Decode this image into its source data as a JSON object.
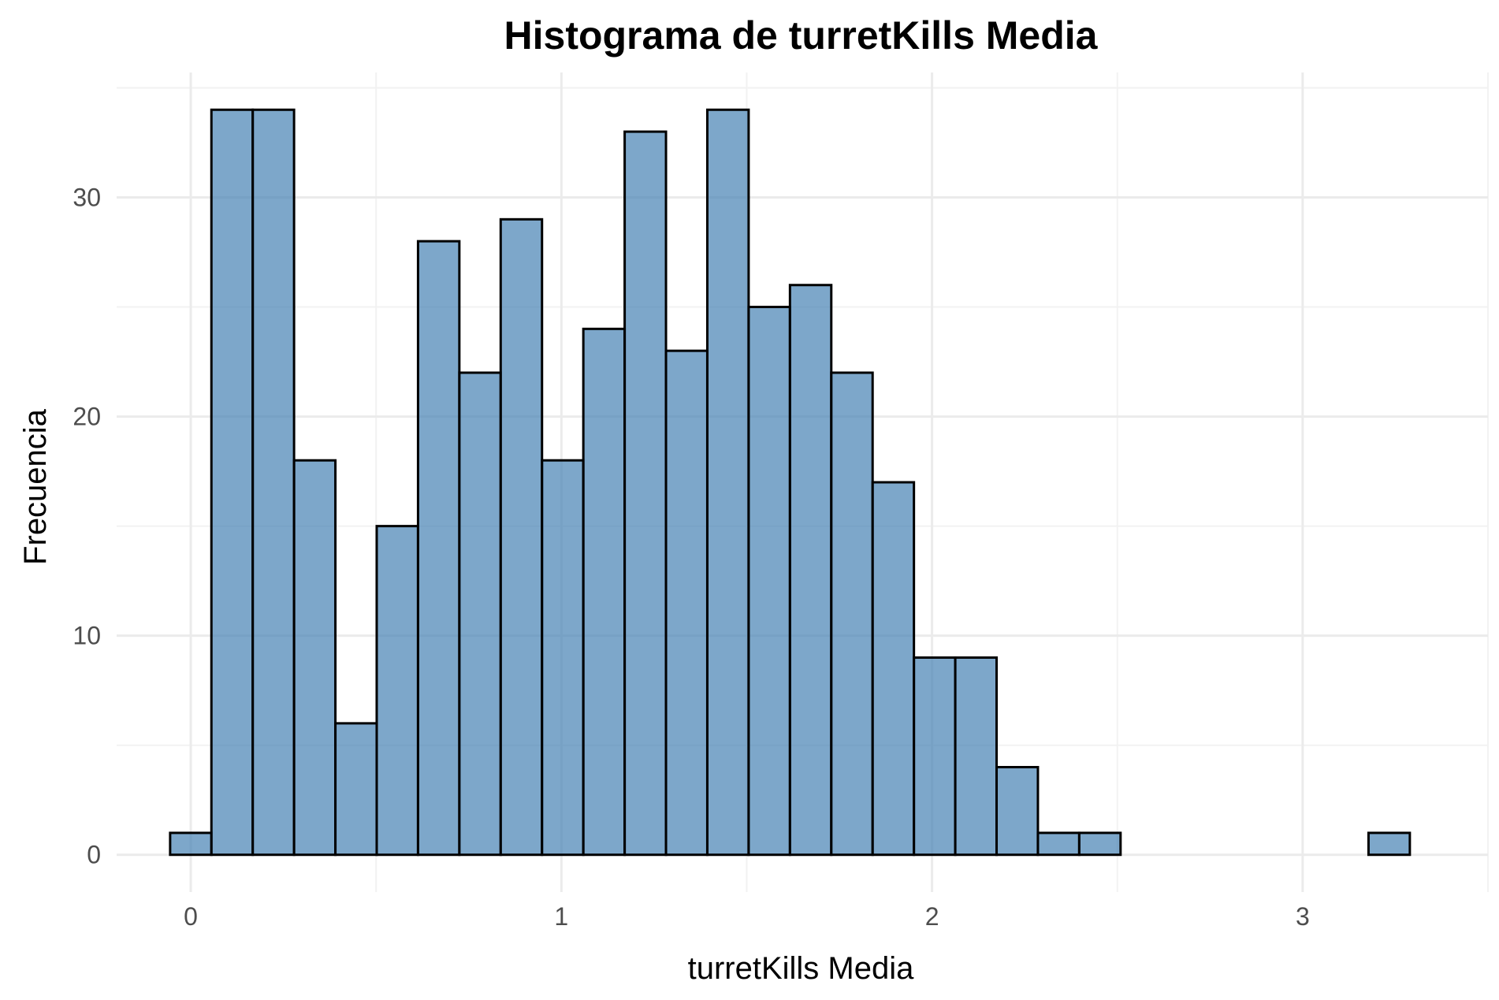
{
  "chart_data": {
    "type": "bar",
    "subtype": "histogram",
    "title": "Histograma de turretKills Media",
    "xlabel": "turretKills Media",
    "ylabel": "Frecuencia",
    "xlim": [
      -0.2,
      3.5
    ],
    "ylim": [
      -1.7,
      35.7
    ],
    "x_ticks": [
      0,
      1,
      2,
      3
    ],
    "y_ticks": [
      0,
      10,
      20,
      30
    ],
    "x_tick_labels": [
      "0",
      "1",
      "2",
      "3"
    ],
    "y_tick_labels": [
      "0",
      "10",
      "20",
      "30"
    ],
    "grid": true,
    "legend": "none",
    "bin_width": 0.1115,
    "bins": [
      {
        "x_start": -0.0557,
        "x_end": 0.0557,
        "count": 1
      },
      {
        "x_start": 0.0557,
        "x_end": 0.1672,
        "count": 34
      },
      {
        "x_start": 0.1672,
        "x_end": 0.2787,
        "count": 34
      },
      {
        "x_start": 0.2787,
        "x_end": 0.3902,
        "count": 18
      },
      {
        "x_start": 0.3902,
        "x_end": 0.5017,
        "count": 6
      },
      {
        "x_start": 0.5017,
        "x_end": 0.6132,
        "count": 15
      },
      {
        "x_start": 0.6132,
        "x_end": 0.7247,
        "count": 28
      },
      {
        "x_start": 0.7247,
        "x_end": 0.8362,
        "count": 22
      },
      {
        "x_start": 0.8362,
        "x_end": 0.9477,
        "count": 29
      },
      {
        "x_start": 0.9477,
        "x_end": 1.0592,
        "count": 18
      },
      {
        "x_start": 1.0592,
        "x_end": 1.1707,
        "count": 24
      },
      {
        "x_start": 1.1707,
        "x_end": 1.2822,
        "count": 33
      },
      {
        "x_start": 1.2822,
        "x_end": 1.3937,
        "count": 23
      },
      {
        "x_start": 1.3937,
        "x_end": 1.5052,
        "count": 34
      },
      {
        "x_start": 1.5052,
        "x_end": 1.6167,
        "count": 25
      },
      {
        "x_start": 1.6167,
        "x_end": 1.7282,
        "count": 26
      },
      {
        "x_start": 1.7282,
        "x_end": 1.8397,
        "count": 22
      },
      {
        "x_start": 1.8397,
        "x_end": 1.9512,
        "count": 17
      },
      {
        "x_start": 1.9512,
        "x_end": 2.0627,
        "count": 9
      },
      {
        "x_start": 2.0627,
        "x_end": 2.1742,
        "count": 9
      },
      {
        "x_start": 2.1742,
        "x_end": 2.2857,
        "count": 4
      },
      {
        "x_start": 2.2857,
        "x_end": 2.3972,
        "count": 1
      },
      {
        "x_start": 2.3972,
        "x_end": 2.5087,
        "count": 1
      },
      {
        "x_start": 2.5087,
        "x_end": 2.6202,
        "count": 0
      },
      {
        "x_start": 2.6202,
        "x_end": 2.7317,
        "count": 0
      },
      {
        "x_start": 2.7317,
        "x_end": 2.8432,
        "count": 0
      },
      {
        "x_start": 2.8432,
        "x_end": 2.9547,
        "count": 0
      },
      {
        "x_start": 2.9547,
        "x_end": 3.0662,
        "count": 0
      },
      {
        "x_start": 3.0662,
        "x_end": 3.1777,
        "count": 0
      },
      {
        "x_start": 3.1777,
        "x_end": 3.2892,
        "count": 1
      }
    ],
    "colors": {
      "bar_fill": "#4682B4",
      "bar_outline": "#000000",
      "grid": "#ebebeb",
      "background": "#ffffff"
    }
  }
}
